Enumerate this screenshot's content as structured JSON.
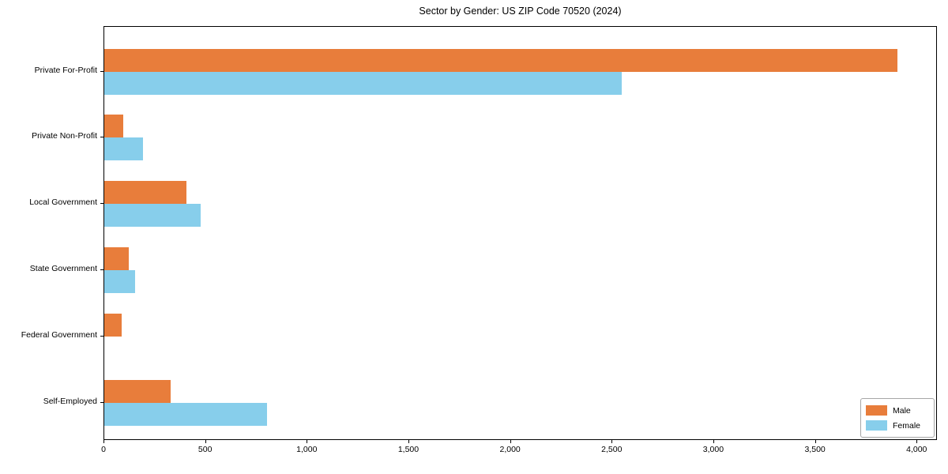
{
  "chart_data": {
    "type": "bar",
    "orientation": "horizontal",
    "title": "Sector by Gender: US ZIP Code 70520 (2024)",
    "categories": [
      "Private For-Profit",
      "Private Non-Profit",
      "Local Government",
      "State Government",
      "Federal Government",
      "Self-Employed"
    ],
    "series": [
      {
        "name": "Male",
        "color": "#e87d3b",
        "values": [
          3900,
          95,
          405,
          120,
          85,
          325
        ]
      },
      {
        "name": "Female",
        "color": "#87ceeb",
        "values": [
          2545,
          190,
          475,
          150,
          0,
          800
        ]
      }
    ],
    "xlabel": "",
    "ylabel": "",
    "xlim": [
      0,
      4100
    ],
    "xticks": [
      0,
      500,
      1000,
      1500,
      2000,
      2500,
      3000,
      3500,
      4000
    ],
    "xtick_labels": [
      "0",
      "500",
      "1,000",
      "1,500",
      "2,000",
      "2,500",
      "3,000",
      "3,500",
      "4,000"
    ],
    "grid": false,
    "legend_position": "lower right",
    "background_color": "#ffffff",
    "spine_color": "#000000"
  }
}
